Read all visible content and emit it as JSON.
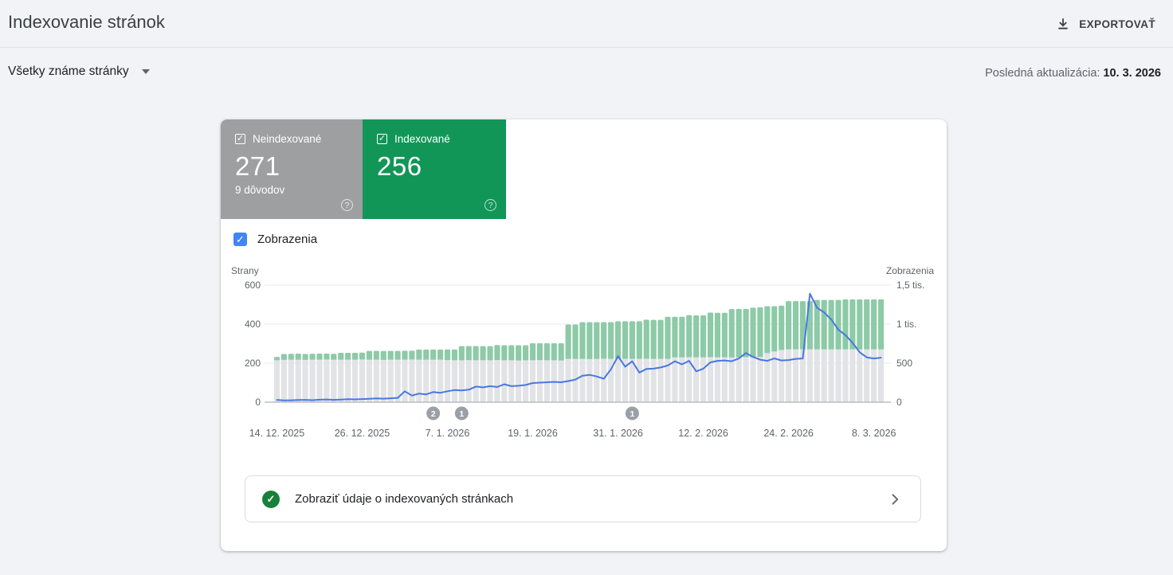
{
  "header": {
    "title": "Indexovanie stránok",
    "export_label": "EXPORTOVAŤ"
  },
  "filter_bar": {
    "dropdown_label": "Všetky známe stránky",
    "last_update_label": "Posledná aktualizácia:",
    "last_update_date": "10. 3. 2026"
  },
  "tabs": {
    "not_indexed": {
      "label": "Neindexované",
      "value": "271",
      "sub": "9 dôvodov",
      "color": "#9d9fa0",
      "checkbox": "✓",
      "help": "?"
    },
    "indexed": {
      "label": "Indexované",
      "value": "256",
      "color": "#119658",
      "checkbox": "✓",
      "help": "?"
    }
  },
  "legend": {
    "impressions_label": "Zobrazenia",
    "checkbox_color": "#4285f4",
    "check_glyph": "✓"
  },
  "chart_data": {
    "type": "bar",
    "subtype": "stacked-bars-with-line-overlay",
    "title": "",
    "left_axis": {
      "title": "Strany",
      "ticks": [
        "600",
        "400",
        "200",
        "0"
      ],
      "tick_values": [
        600,
        400,
        200,
        0
      ],
      "max": 600
    },
    "right_axis": {
      "title": "Zobrazenia",
      "ticks": [
        "1,5 tis.",
        "1 tis.",
        "500",
        "0"
      ],
      "tick_values": [
        1500,
        1000,
        500,
        0
      ],
      "max": 1500
    },
    "x_ticks": [
      {
        "index": 0,
        "label": "14. 12. 2025"
      },
      {
        "index": 12,
        "label": "26. 12. 2025"
      },
      {
        "index": 24,
        "label": "7. 1. 2026"
      },
      {
        "index": 36,
        "label": "19. 1. 2026"
      },
      {
        "index": 48,
        "label": "31. 1. 2026"
      },
      {
        "index": 60,
        "label": "12. 2. 2026"
      },
      {
        "index": 72,
        "label": "24. 2. 2026"
      },
      {
        "index": 84,
        "label": "8. 3. 2026"
      }
    ],
    "series": [
      {
        "name": "Neindexované",
        "type": "bar",
        "axis": "left",
        "color": "#e2e3e6",
        "values": [
          215,
          217,
          218,
          218,
          217,
          218,
          218,
          219,
          218,
          218,
          218,
          218,
          219,
          218,
          218,
          217,
          218,
          218,
          218,
          219,
          218,
          218,
          218,
          218,
          216,
          215,
          215,
          216,
          215,
          215,
          215,
          216,
          215,
          215,
          214,
          215,
          215,
          216,
          215,
          215,
          214,
          222,
          222,
          222,
          221,
          222,
          223,
          222,
          222,
          222,
          222,
          222,
          223,
          222,
          222,
          222,
          230,
          230,
          231,
          230,
          230,
          231,
          230,
          230,
          229,
          230,
          231,
          230,
          232,
          252,
          260,
          268,
          271,
          271,
          271,
          271,
          271,
          271,
          271,
          271,
          271,
          271,
          271,
          271,
          271,
          271
        ]
      },
      {
        "name": "Indexované",
        "type": "bar",
        "axis": "left",
        "color": "#8dcaa7",
        "values": [
          17,
          30,
          30,
          31,
          30,
          30,
          31,
          30,
          30,
          35,
          35,
          35,
          35,
          45,
          45,
          45,
          45,
          45,
          46,
          45,
          52,
          52,
          52,
          52,
          54,
          55,
          72,
          72,
          73,
          72,
          72,
          77,
          77,
          77,
          78,
          77,
          87,
          86,
          87,
          87,
          88,
          176,
          176,
          188,
          189,
          188,
          187,
          188,
          193,
          193,
          193,
          193,
          200,
          200,
          200,
          216,
          208,
          208,
          215,
          215,
          215,
          228,
          228,
          228,
          248,
          248,
          247,
          254,
          254,
          240,
          232,
          227,
          247,
          247,
          247,
          247,
          253,
          253,
          253,
          253,
          256,
          256,
          256,
          256,
          256,
          256
        ]
      },
      {
        "name": "Zobrazenia",
        "type": "line",
        "axis": "right",
        "color": "#4778e0",
        "values": [
          30,
          22,
          25,
          28,
          30,
          26,
          32,
          35,
          30,
          34,
          38,
          36,
          40,
          44,
          48,
          45,
          50,
          55,
          140,
          85,
          110,
          100,
          130,
          120,
          140,
          155,
          150,
          160,
          200,
          190,
          205,
          195,
          230,
          205,
          210,
          220,
          245,
          250,
          255,
          260,
          255,
          270,
          290,
          340,
          350,
          330,
          300,
          420,
          590,
          455,
          525,
          380,
          425,
          430,
          445,
          470,
          525,
          485,
          530,
          395,
          430,
          510,
          530,
          535,
          525,
          560,
          630,
          580,
          545,
          530,
          560,
          535,
          540,
          555,
          560,
          1390,
          1210,
          1150,
          1060,
          930,
          860,
          760,
          640,
          575,
          560,
          570
        ]
      }
    ],
    "annotations": [
      {
        "index": 22,
        "label": "2"
      },
      {
        "index": 26,
        "label": "1"
      },
      {
        "index": 50,
        "label": "1"
      }
    ],
    "annotation_color": "#9aa0a6",
    "grid_color": "#e8eaed",
    "axis_line_color": "#9aa0a6",
    "tick_label_color": "#5f6368"
  },
  "banner": {
    "text": "Zobraziť údaje o indexovaných stránkach",
    "check_glyph": "✓"
  }
}
